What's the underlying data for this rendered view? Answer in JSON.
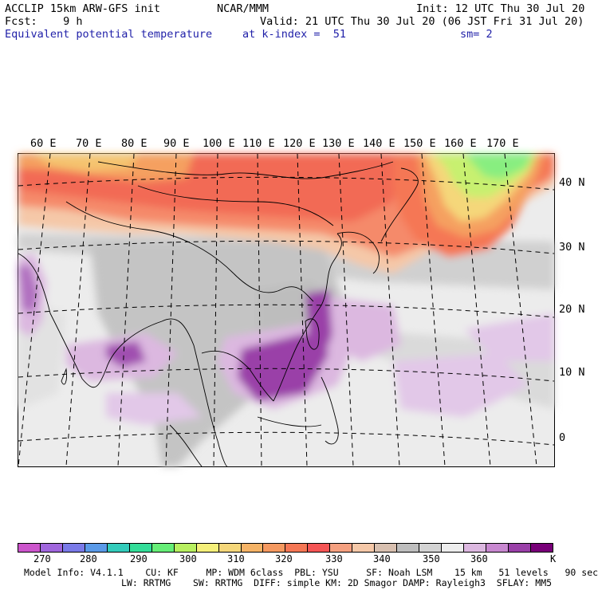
{
  "header": {
    "model": "ACCLIP 15km ARW-GFS init",
    "org": "NCAR/MMM",
    "init": "Init: 12 UTC Thu 30 Jul 20",
    "fcst": "Fcst:    9 h",
    "valid": "Valid: 21 UTC Thu 30 Jul 20 (06 JST Fri 31 Jul 20)",
    "field": "Equivalent potential temperature",
    "level": "at k-index =  51",
    "smooth": "sm= 2"
  },
  "map": {
    "lon_labels": [
      "60 E",
      "70 E",
      "80 E",
      "90 E",
      "100 E",
      "110 E",
      "120 E",
      "130 E",
      "140 E",
      "150 E",
      "160 E",
      "170 E"
    ],
    "lat_labels": [
      "40 N",
      "30 N",
      "20 N",
      "10 N",
      "0"
    ]
  },
  "colorbar": {
    "colors": [
      "#cc55cc",
      "#a066dd",
      "#7a7ae8",
      "#5a9ae8",
      "#33ccbb",
      "#33dd99",
      "#66ee77",
      "#b8f060",
      "#f5f07a",
      "#f5d77a",
      "#f5b366",
      "#f59960",
      "#f57755",
      "#f55555",
      "#f5a080",
      "#f5c8a8",
      "#d8c0b0",
      "#bebebe",
      "#d3d3d3",
      "#ededed",
      "#dcb8e0",
      "#c888d0",
      "#9a40a8",
      "#780078"
    ],
    "labels": [
      "270",
      "280",
      "290",
      "300",
      "310",
      "320",
      "330",
      "340",
      "350",
      "360",
      "K"
    ],
    "unit": "K"
  },
  "model_info": {
    "line1": "Model Info: V4.1.1    CU: KF     MP: WDM 6class  PBL: YSU     SF: Noah LSM    15 km   51 levels   90 sec",
    "line2": "LW: RRTMG    SW: RRTMG  DIFF: simple KM: 2D Smagor DAMP: Rayleigh3  SFLAY: MM5"
  }
}
